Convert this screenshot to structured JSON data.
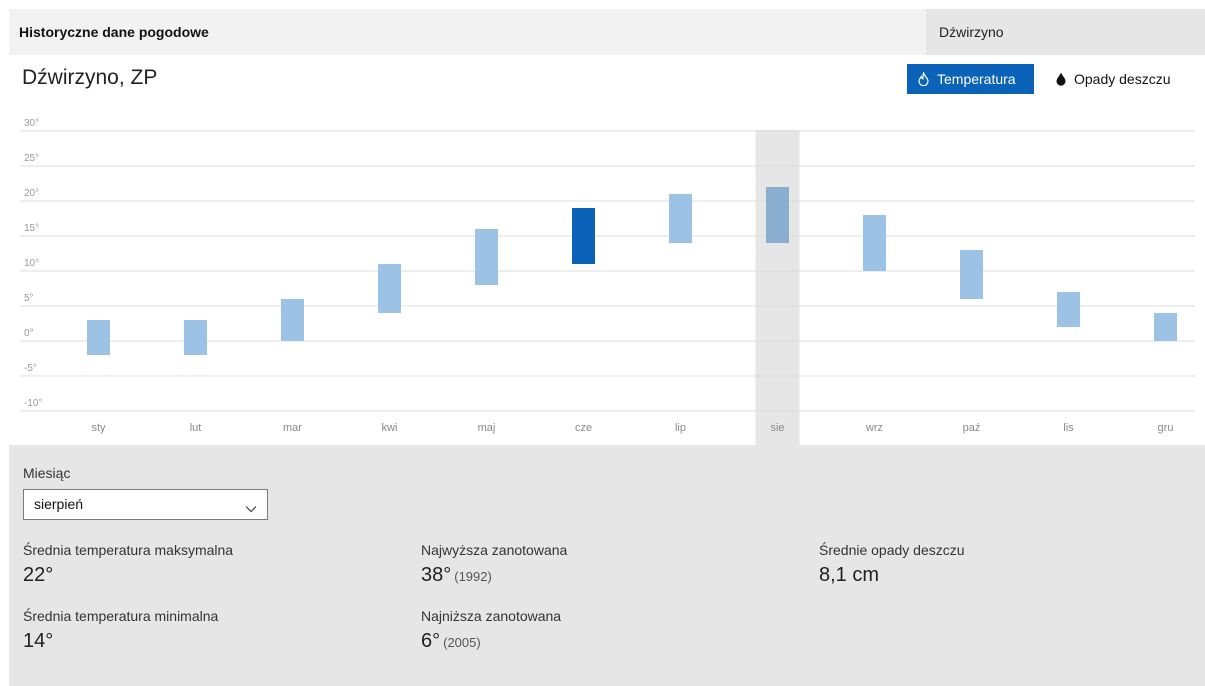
{
  "header": {
    "app_title": "Historyczne dane pogodowe",
    "search_value": "Dźwirzyno"
  },
  "location": "Dźwirzyno, ZP",
  "toggles": {
    "temperature_label": "Temperatura",
    "rain_label": "Opady deszczu",
    "active": "temperature",
    "icons": [
      "flame-icon",
      "raindrop-icon"
    ]
  },
  "colors": {
    "accent": "#0a63b8",
    "bar": "#9cc3e6",
    "bar_selected_month": "#8aaed0",
    "bar_highlight": "#0a63b8",
    "selected_column": "#e6e6e6"
  },
  "chart_data": {
    "type": "range-bar",
    "categories": [
      "sty",
      "lut",
      "mar",
      "kwi",
      "maj",
      "cze",
      "lip",
      "sie",
      "wrz",
      "paź",
      "lis",
      "gru"
    ],
    "series": [
      {
        "name": "",
        "low": [
          -2,
          -2,
          0,
          4,
          8,
          11,
          14,
          14,
          10,
          6,
          2,
          0
        ],
        "high": [
          3,
          3,
          6,
          11,
          16,
          19,
          21,
          22,
          18,
          13,
          7,
          4
        ]
      }
    ],
    "y_ticks": [
      "30°",
      "25°",
      "20°",
      "15°",
      "10°",
      "5°",
      "0°",
      "-5°",
      "-10°"
    ],
    "y_tick_values": [
      30,
      25,
      20,
      15,
      10,
      5,
      0,
      -5,
      -10
    ],
    "ylim": [
      -10,
      30
    ],
    "selected_category": "sie",
    "highlighted_category": "cze",
    "grid": true
  },
  "details": {
    "month_label": "Miesiąc",
    "month_value": "sierpień",
    "avg_max_label": "Średnia temperatura maksymalna",
    "avg_max_value": "22°",
    "avg_min_label": "Średnia temperatura minimalna",
    "avg_min_value": "14°",
    "record_high_label": "Najwyższa zanotowana",
    "record_high_value": "38°",
    "record_high_year": "(1992)",
    "record_low_label": "Najniższa zanotowana",
    "record_low_value": "6°",
    "record_low_year": "(2005)",
    "avg_rain_label": "Średnie opady deszczu",
    "avg_rain_value": "8,1 cm"
  }
}
